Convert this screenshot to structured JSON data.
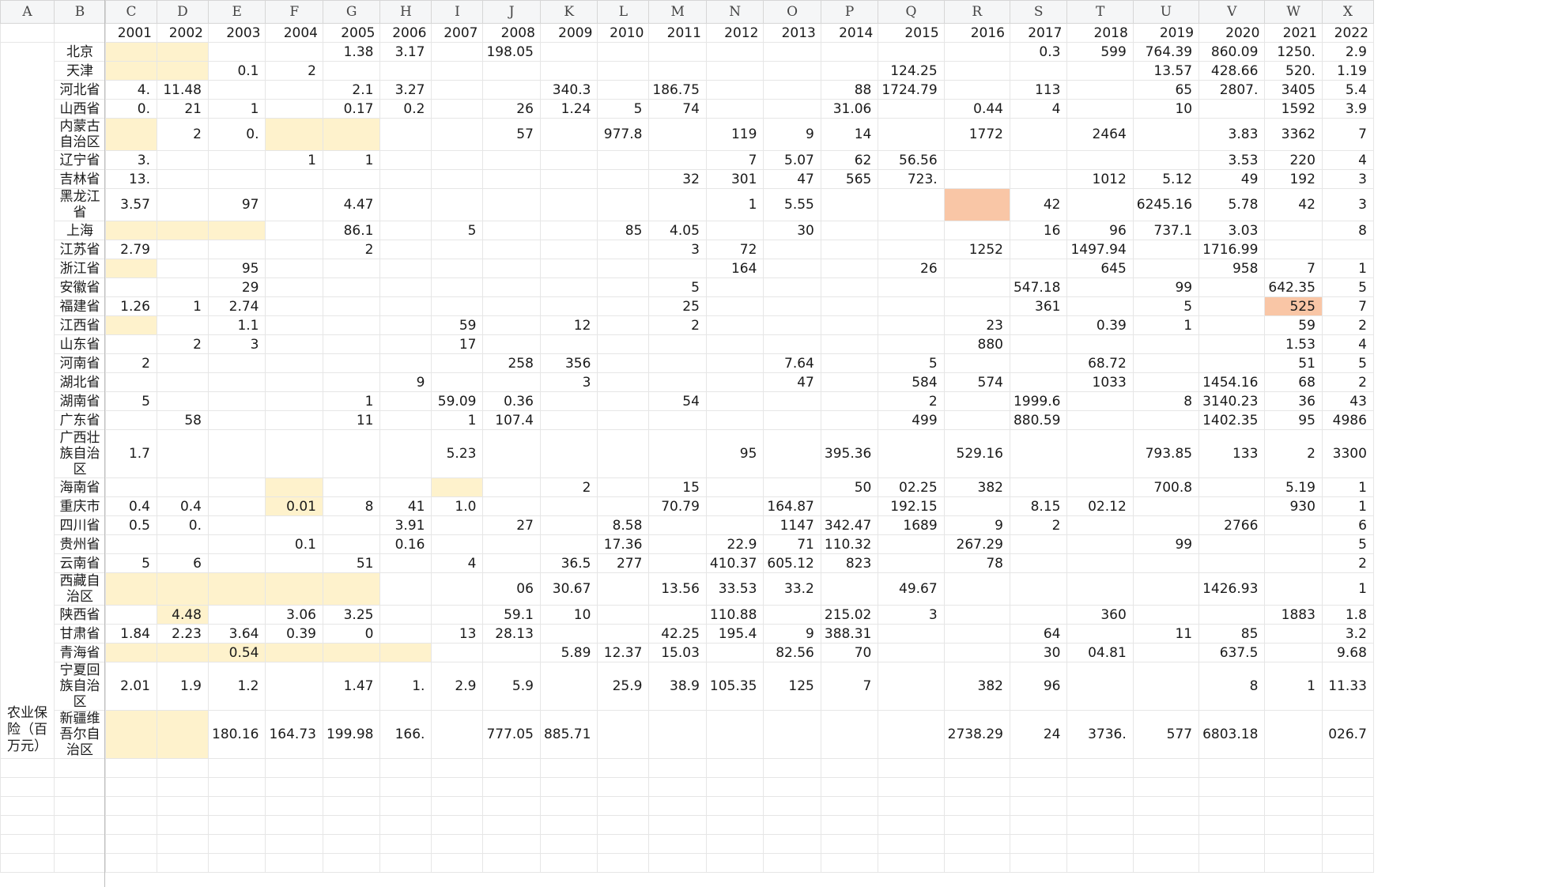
{
  "columns": [
    "A",
    "B",
    "C",
    "D",
    "E",
    "F",
    "G",
    "H",
    "I",
    "J",
    "K",
    "L",
    "M",
    "N",
    "O",
    "P",
    "Q",
    "R",
    "S",
    "T",
    "U",
    "V",
    "W",
    "X"
  ],
  "years": [
    "2001",
    "2002",
    "2003",
    "2004",
    "2005",
    "2006",
    "2007",
    "2008",
    "2009",
    "2010",
    "2011",
    "2012",
    "2013",
    "2014",
    "2015",
    "2016",
    "2017",
    "2018",
    "2019",
    "2020",
    "2021",
    "2022"
  ],
  "metric_label": "农业保险（百万元）",
  "rows": [
    {
      "region": "北京",
      "cells": [
        "",
        "",
        "",
        "",
        "1.38",
        "3.17",
        "",
        "198.05",
        "",
        "",
        "",
        "",
        "",
        "",
        "",
        "",
        "0.3",
        "599",
        "764.39",
        "860.09",
        "1250.",
        "2.9"
      ]
    },
    {
      "region": "天津",
      "cells": [
        "",
        "",
        "0.1",
        "2",
        "",
        "",
        "",
        "",
        "",
        "",
        "",
        "",
        "",
        "",
        "124.25",
        "",
        "",
        "",
        "13.57",
        "428.66",
        "520.",
        "1.19"
      ]
    },
    {
      "region": "河北省",
      "cells": [
        "4.",
        "11.48",
        "",
        "",
        "2.1",
        "3.27",
        "",
        "",
        "340.3",
        "",
        "186.75",
        "",
        "",
        "88",
        "1724.79",
        "",
        "113",
        "",
        "65",
        "2807.",
        "3405",
        "5.4"
      ]
    },
    {
      "region": "山西省",
      "cells": [
        "0.",
        "21",
        "1",
        "",
        "0.17",
        "0.2",
        "",
        "26",
        "1.24",
        "5",
        "74",
        "",
        "",
        "31.06",
        "",
        "0.44",
        "4",
        "",
        "10",
        "",
        "1592",
        "3.9"
      ]
    },
    {
      "region": "内蒙古自治区",
      "cells": [
        "",
        "2",
        "0.",
        "",
        "",
        "",
        "",
        "57",
        "",
        "977.8",
        "",
        "119",
        "9",
        "14",
        "",
        "1772",
        "",
        "2464",
        "",
        "3.83",
        "3362",
        "7"
      ],
      "tall": true
    },
    {
      "region": "辽宁省",
      "cells": [
        "3.",
        "",
        "",
        "1",
        "1",
        "",
        "",
        "",
        "",
        "",
        "",
        "7",
        "5.07",
        "62",
        "56.56",
        "",
        "",
        "",
        "",
        "3.53",
        "220",
        "4"
      ]
    },
    {
      "region": "吉林省",
      "cells": [
        "13.",
        "",
        "",
        "",
        "",
        "",
        "",
        "",
        "",
        "",
        "32",
        "301",
        "47",
        "565",
        "723.",
        "",
        "",
        "1012",
        "5.12",
        "49",
        "192",
        "3"
      ]
    },
    {
      "region": "黑龙江省",
      "cells": [
        "3.57",
        "",
        "97",
        "",
        "4.47",
        "",
        "",
        "",
        "",
        "",
        "",
        "1",
        "5.55",
        "",
        "",
        "",
        "42",
        "",
        "6245.16",
        "5.78",
        "42",
        "3"
      ]
    },
    {
      "region": "上海",
      "cells": [
        "",
        "",
        "",
        "",
        "86.1",
        "",
        "5",
        "",
        "",
        "85",
        "4.05",
        "",
        "30",
        "",
        "",
        "",
        "16",
        "96",
        "737.1",
        "3.03",
        "",
        "8"
      ]
    },
    {
      "region": "江苏省",
      "cells": [
        "2.79",
        "",
        "",
        "",
        "2",
        "",
        "",
        "",
        "",
        "",
        "3",
        "72",
        "",
        "",
        "",
        "1252",
        "",
        "1497.94",
        "",
        "1716.99",
        "",
        ""
      ]
    },
    {
      "region": "浙江省",
      "cells": [
        "",
        "",
        "95",
        "",
        "",
        "",
        "",
        "",
        "",
        "",
        "",
        "164",
        "",
        "",
        "26",
        "",
        "",
        "645",
        "",
        "958",
        "7",
        "1"
      ]
    },
    {
      "region": "安徽省",
      "cells": [
        "",
        "",
        "29",
        "",
        "",
        "",
        "",
        "",
        "",
        "",
        "5",
        "",
        "",
        "",
        "",
        "",
        "547.18",
        "",
        "99",
        "",
        "642.35",
        "5"
      ]
    },
    {
      "region": "福建省",
      "cells": [
        "1.26",
        "1",
        "2.74",
        "",
        "",
        "",
        "",
        "",
        "",
        "",
        "25",
        "",
        "",
        "",
        "",
        "",
        "361",
        "",
        "5",
        "",
        "525",
        "7"
      ]
    },
    {
      "region": "江西省",
      "cells": [
        "",
        "",
        "1.1",
        "",
        "",
        "",
        "59",
        "",
        "12",
        "",
        "2",
        "",
        "",
        "",
        "",
        "23",
        "",
        "0.39",
        "1",
        "",
        "59",
        "2"
      ]
    },
    {
      "region": "山东省",
      "cells": [
        "",
        "2",
        "3",
        "",
        "",
        "",
        "17",
        "",
        "",
        "",
        "",
        "",
        "",
        "",
        "",
        "880",
        "",
        "",
        "",
        "",
        "1.53",
        "4"
      ]
    },
    {
      "region": "河南省",
      "cells": [
        "2",
        "",
        "",
        "",
        "",
        "",
        "",
        "258",
        "356",
        "",
        "",
        "",
        "7.64",
        "",
        "5",
        "",
        "",
        "68.72",
        "",
        "",
        "51",
        "5"
      ]
    },
    {
      "region": "湖北省",
      "cells": [
        "",
        "",
        "",
        "",
        "",
        "9",
        "",
        "",
        "3",
        "",
        "",
        "",
        "47",
        "",
        "584",
        "574",
        "",
        "1033",
        "",
        "1454.16",
        "68",
        "2"
      ]
    },
    {
      "region": "湖南省",
      "cells": [
        "5",
        "",
        "",
        "",
        "1",
        "",
        "59.09",
        "0.36",
        "",
        "",
        "54",
        "",
        "",
        "",
        "2",
        "",
        "1999.6",
        "",
        "8",
        "3140.23",
        "36",
        "43"
      ]
    },
    {
      "region": "广东省",
      "cells": [
        "",
        "58",
        "",
        "",
        "11",
        "",
        "1",
        "107.4",
        "",
        "",
        "",
        "",
        "",
        "",
        "499",
        "",
        "880.59",
        "",
        "",
        "1402.35",
        "95",
        "4986"
      ]
    },
    {
      "region": "广西壮族自治区",
      "cells": [
        "1.7",
        "",
        "",
        "",
        "",
        "",
        "5.23",
        "",
        "",
        "",
        "",
        "95",
        "",
        "395.36",
        "",
        "529.16",
        "",
        "",
        "793.85",
        "133",
        "2",
        "3300"
      ],
      "tall": true
    },
    {
      "region": "海南省",
      "cells": [
        "",
        "",
        "",
        "",
        "",
        "",
        "",
        "",
        "2",
        "",
        "15",
        "",
        "",
        "50",
        "02.25",
        "382",
        "",
        "",
        "700.8",
        "",
        "5.19",
        "1"
      ]
    },
    {
      "region": "重庆市",
      "cells": [
        "0.4",
        "0.4",
        "",
        "0.01",
        "8",
        "41",
        "1.0",
        "",
        "",
        "",
        "70.79",
        "",
        "164.87",
        "",
        "192.15",
        "",
        "8.15",
        "02.12",
        "",
        "",
        "930",
        "1"
      ]
    },
    {
      "region": "四川省",
      "cells": [
        "0.5",
        "0.",
        "",
        "",
        "",
        "3.91",
        "",
        "27",
        "",
        "8.58",
        "",
        "",
        "1147",
        "342.47",
        "1689",
        "9",
        "2",
        "",
        "",
        "2766",
        "",
        "6"
      ]
    },
    {
      "region": "贵州省",
      "cells": [
        "",
        "",
        "",
        "0.1",
        "",
        "0.16",
        "",
        "",
        "",
        "17.36",
        "",
        "22.9",
        "71",
        "110.32",
        "",
        "267.29",
        "",
        "",
        "99",
        "",
        "",
        "5"
      ]
    },
    {
      "region": "云南省",
      "cells": [
        "5",
        "6",
        "",
        "",
        "51",
        "",
        "4",
        "",
        "36.5",
        "277",
        "",
        "410.37",
        "605.12",
        "823",
        "",
        "78",
        "",
        "",
        "",
        "",
        "",
        "2"
      ]
    },
    {
      "region": "西藏自治区",
      "cells": [
        "",
        "",
        "",
        "",
        "",
        "",
        "",
        "06",
        "30.67",
        "",
        "13.56",
        "33.53",
        "33.2",
        "",
        "49.67",
        "",
        "",
        "",
        "",
        "1426.93",
        "",
        "1"
      ],
      "tall": true
    },
    {
      "region": "陕西省",
      "cells": [
        "",
        "4.48",
        "",
        "3.06",
        "3.25",
        "",
        "",
        "59.1",
        "10",
        "",
        "",
        "110.88",
        "",
        "215.02",
        "3",
        "",
        "",
        "360",
        "",
        "",
        "1883",
        "1.8"
      ]
    },
    {
      "region": "甘肃省",
      "cells": [
        "1.84",
        "2.23",
        "3.64",
        "0.39",
        "0",
        "",
        "13",
        "28.13",
        "",
        "",
        "42.25",
        "195.4",
        "9",
        "388.31",
        "",
        "",
        "64",
        "",
        "11",
        "85",
        "",
        "3.2"
      ]
    },
    {
      "region": "青海省",
      "cells": [
        "",
        "",
        "0.54",
        "",
        "",
        "",
        "",
        "",
        "5.89",
        "12.37",
        "15.03",
        "",
        "82.56",
        "70",
        "",
        "",
        "30",
        "04.81",
        "",
        "637.5",
        "",
        "9.68"
      ]
    },
    {
      "region": "宁夏回族自治区",
      "cells": [
        "2.01",
        "1.9",
        "1.2",
        "",
        "1.47",
        "1.",
        "2.9",
        "5.9",
        "",
        "25.9",
        "38.9",
        "105.35",
        "125",
        "7",
        "",
        "382",
        "96",
        "",
        "",
        "8",
        "1",
        "11.33"
      ],
      "tall": true
    },
    {
      "region": "新疆维吾尔自治区",
      "cells": [
        "",
        "",
        "180.16",
        "164.73",
        "199.98",
        "166.",
        "",
        "777.05",
        "885.71",
        "",
        "",
        "",
        "",
        "",
        "",
        "2738.29",
        "24",
        "3736.",
        "577",
        "6803.18",
        "",
        "026.7"
      ],
      "tall": true
    }
  ]
}
